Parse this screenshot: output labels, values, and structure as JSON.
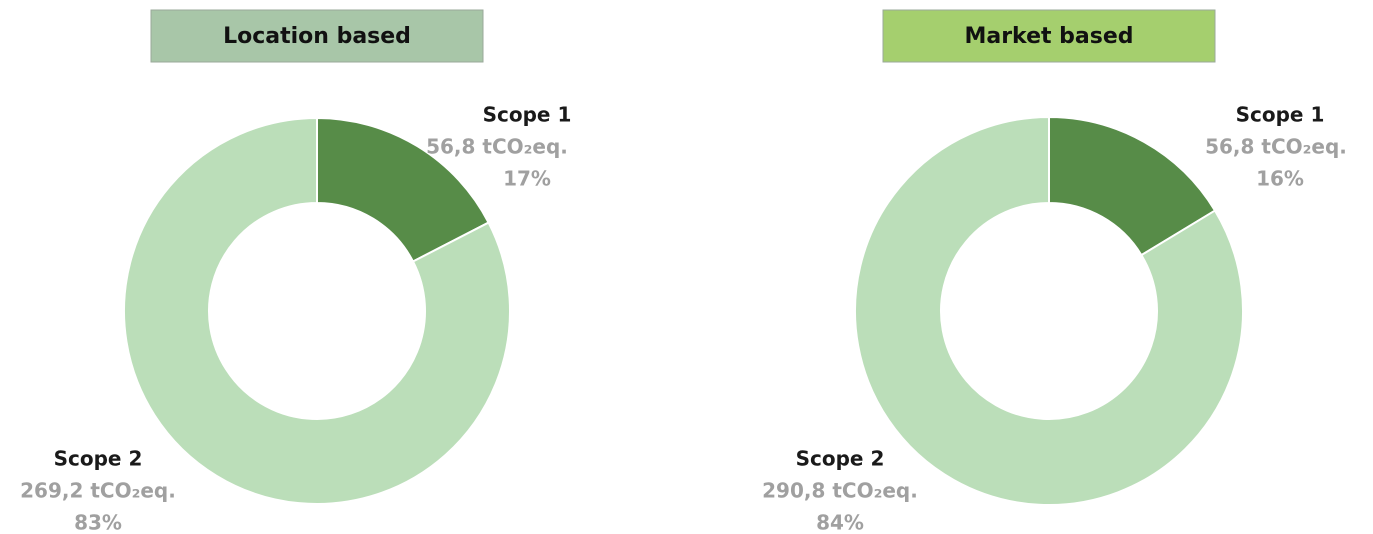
{
  "chart_data": [
    {
      "type": "donut",
      "title": "Location based",
      "title_color": "#a8c6a8",
      "categories": [
        "Scope 1",
        "Scope 2"
      ],
      "values": [
        56.8,
        269.2
      ],
      "value_labels": [
        "56,8 tCO₂eq.",
        "269,2 tCO₂eq."
      ],
      "percent_labels": [
        "17%",
        "83%"
      ],
      "colors": [
        "#578c48",
        "#bbdeb9"
      ]
    },
    {
      "type": "donut",
      "title": "Market based",
      "title_color": "#a5cf6e",
      "categories": [
        "Scope 1",
        "Scope 2"
      ],
      "values": [
        56.8,
        290.8
      ],
      "value_labels": [
        "56,8 tCO₂eq.",
        "290,8 tCO₂eq."
      ],
      "percent_labels": [
        "16%",
        "84%"
      ],
      "colors": [
        "#578c48",
        "#bbdeb9"
      ]
    }
  ]
}
